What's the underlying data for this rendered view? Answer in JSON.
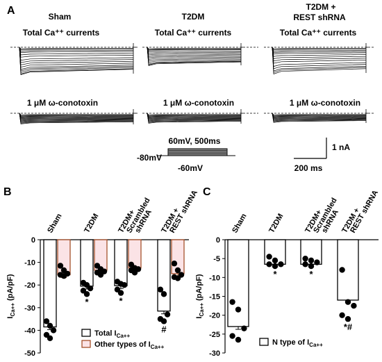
{
  "panel_a": {
    "letter": "A",
    "columns": [
      {
        "title": "Sham",
        "top_label": "Total Ca⁺⁺ currents",
        "bottom_label": "1 μM ω-conotoxin"
      },
      {
        "title": "T2DM",
        "top_label": "Total Ca⁺⁺ currents",
        "bottom_label": "1 μM ω-conotoxin"
      },
      {
        "title_line1": "T2DM +",
        "title_line2": "REST shRNA",
        "top_label": "Total Ca⁺⁺ currents",
        "bottom_label": "1 μM ω-conotoxin"
      }
    ],
    "protocol": {
      "label": "60mV, 500ms",
      "holding": "-80mV",
      "step": "-60mV"
    },
    "scale_bar": {
      "current": "1 nA",
      "time": "200 ms"
    }
  },
  "chart_data": [
    {
      "panel": "B",
      "type": "bar",
      "ylabel_main": "I",
      "ylabel_sub": "Ca++",
      "ylabel_units": " (pA/pF)",
      "ylim": [
        -50,
        0
      ],
      "yticks": [
        0,
        -10,
        -20,
        -30,
        -40,
        -50
      ],
      "categories": [
        "Sham",
        "T2DM",
        "T2DM+ Scrambled shRNA",
        "T2DM + REST shRNA"
      ],
      "category_labels": [
        [
          "Sham"
        ],
        [
          "T2DM"
        ],
        [
          "T2DM+",
          "Scrambled",
          "shRNA"
        ],
        [
          "T2DM +",
          "REST shRNA"
        ]
      ],
      "series": [
        {
          "name": "Total I_Ca++",
          "color": "#000000",
          "values": [
            -38.5,
            -20.5,
            -20.3,
            -31.5
          ],
          "points": [
            [
              -36,
              -38,
              -40,
              -42,
              -43.5
            ],
            [
              -19,
              -20,
              -21.5,
              -22.5,
              -24
            ],
            [
              -18.5,
              -19.5,
              -20,
              -22,
              -23.5
            ],
            [
              -22,
              -24,
              -33,
              -35,
              -36
            ]
          ],
          "annotations": [
            "",
            "*",
            "*",
            "#"
          ]
        },
        {
          "name": "Other types of I_Ca++",
          "color": "#a5502b",
          "values": [
            -15.5,
            -13.5,
            -12.5,
            -15
          ],
          "points": [
            [
              -11.5,
              -13.5,
              -15,
              -15.5,
              -16
            ],
            [
              -11.5,
              -13,
              -14,
              -14.5,
              -15.5
            ],
            [
              -11,
              -12.5,
              -13,
              -13.5,
              -14.5
            ],
            [
              -10.5,
              -13.5,
              -15.5,
              -16.5,
              -17
            ]
          ],
          "annotations": [
            "",
            "",
            "",
            ""
          ]
        }
      ],
      "legend": {
        "placement": "bottom-right",
        "entries": [
          {
            "text": "Total I",
            "sub": "Ca++",
            "color": "#000000"
          },
          {
            "text": "Other types of I",
            "sub": "Ca++",
            "color": "#a5502b"
          }
        ]
      }
    },
    {
      "panel": "C",
      "type": "bar",
      "ylabel_main": "I",
      "ylabel_sub": "Ca++",
      "ylabel_units": " (pA/pF)",
      "ylim": [
        -30,
        0
      ],
      "yticks": [
        0,
        -5,
        -10,
        -15,
        -20,
        -25,
        -30
      ],
      "categories": [
        "Sham",
        "T2DM",
        "T2DM+ Scrambled shRNA",
        "T2DM + REST shRNA"
      ],
      "category_labels": [
        [
          "Sham"
        ],
        [
          "T2DM"
        ],
        [
          "T2DM+",
          "Scrambled",
          "shRNA"
        ],
        [
          "T2DM +",
          "REST shRNA"
        ]
      ],
      "series": [
        {
          "name": "N type of I_Ca++",
          "color": "#000000",
          "values": [
            -23,
            -6.5,
            -6.5,
            -16
          ],
          "points": [
            [
              -16.5,
              -18.5,
              -23.5,
              -25.5,
              -26.5
            ],
            [
              -4.5,
              -5.5,
              -6.5,
              -6.5,
              -7
            ],
            [
              -5,
              -5.5,
              -6,
              -6.5,
              -7
            ],
            [
              -8,
              -16.5,
              -17.5,
              -20,
              -21
            ]
          ],
          "annotations": [
            "",
            "*",
            "*",
            "*#"
          ]
        }
      ],
      "legend": {
        "placement": "bottom-right",
        "entries": [
          {
            "text": "N type of I",
            "sub": "Ca++",
            "color": "#000000"
          }
        ]
      }
    }
  ]
}
